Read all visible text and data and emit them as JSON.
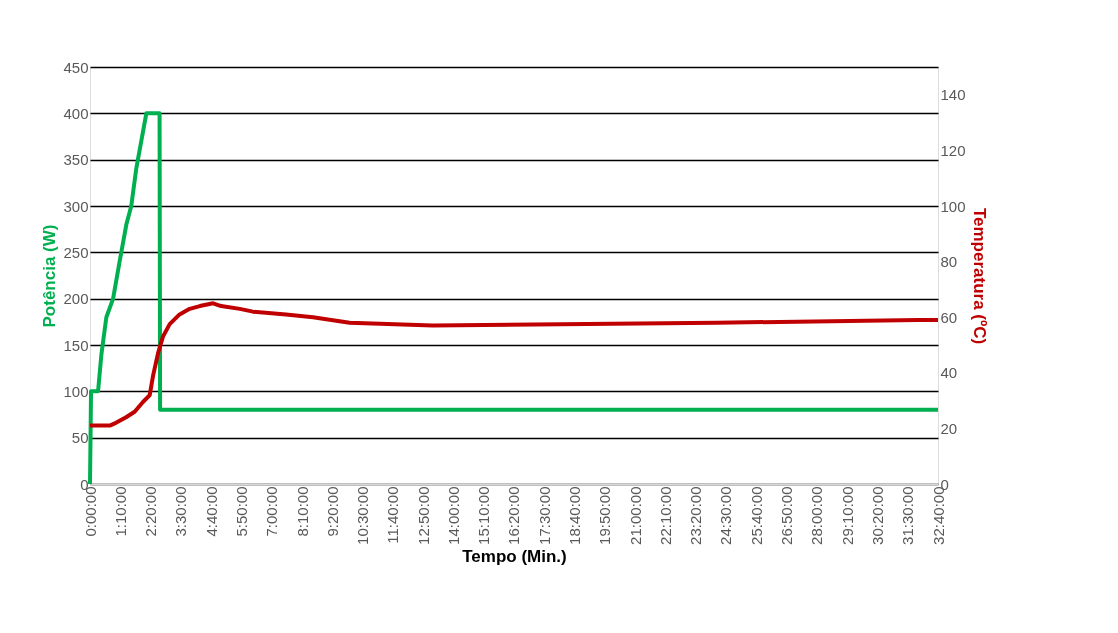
{
  "chart_data": {
    "type": "line",
    "xlabel": "Tempo (Min.)",
    "ylabel": "Potência (W)",
    "y2label": "Temperatura (ºC)",
    "series": [
      {
        "color": "#00b050",
        "axis": "y",
        "x": [
          0,
          0.04,
          0.31,
          0.44,
          0.63,
          0.89,
          1.14,
          1.4,
          1.59,
          1.78,
          2.04,
          2.17,
          2.68,
          2.7,
          32.6667
        ],
        "values": [
          0,
          100,
          100,
          140,
          180,
          200,
          240,
          280,
          300,
          340,
          380,
          400,
          400,
          80,
          80
        ]
      },
      {
        "color": "#c00000",
        "axis": "y2",
        "x": [
          0,
          0.76,
          1.0,
          1.39,
          1.72,
          2.04,
          2.3,
          2.43,
          2.62,
          2.81,
          3.07,
          3.45,
          3.84,
          4.23,
          4.74,
          5.05,
          5.77,
          6.28,
          7.55,
          8.59,
          10.0,
          13.2,
          24.15,
          31.9,
          32.6667
        ],
        "values": [
          21,
          21,
          22,
          24,
          26,
          29.5,
          32,
          39,
          47,
          53,
          57.5,
          61,
          63,
          64,
          65,
          64,
          63,
          62,
          61,
          60,
          58,
          57,
          58,
          59,
          59
        ]
      }
    ],
    "xlim": [
      0,
      32.6667
    ],
    "xticks": [
      {
        "value": 0,
        "label": "0:00:00"
      },
      {
        "value": 1.1667,
        "label": "1:10:00"
      },
      {
        "value": 2.3333,
        "label": "2:20:00"
      },
      {
        "value": 3.5,
        "label": "3:30:00"
      },
      {
        "value": 4.6667,
        "label": "4:40:00"
      },
      {
        "value": 5.8333,
        "label": "5:50:00"
      },
      {
        "value": 7,
        "label": "7:00:00"
      },
      {
        "value": 8.1667,
        "label": "8:10:00"
      },
      {
        "value": 9.3333,
        "label": "9:20:00"
      },
      {
        "value": 10.5,
        "label": "10:30:00"
      },
      {
        "value": 11.6667,
        "label": "11:40:00"
      },
      {
        "value": 12.8333,
        "label": "12:50:00"
      },
      {
        "value": 14,
        "label": "14:00:00"
      },
      {
        "value": 15.1667,
        "label": "15:10:00"
      },
      {
        "value": 16.3333,
        "label": "16:20:00"
      },
      {
        "value": 17.5,
        "label": "17:30:00"
      },
      {
        "value": 18.6667,
        "label": "18:40:00"
      },
      {
        "value": 19.8333,
        "label": "19:50:00"
      },
      {
        "value": 21,
        "label": "21:00:00"
      },
      {
        "value": 22.1667,
        "label": "22:10:00"
      },
      {
        "value": 23.3333,
        "label": "23:20:00"
      },
      {
        "value": 24.5,
        "label": "24:30:00"
      },
      {
        "value": 25.6667,
        "label": "25:40:00"
      },
      {
        "value": 26.8333,
        "label": "26:50:00"
      },
      {
        "value": 28,
        "label": "28:00:00"
      },
      {
        "value": 29.1667,
        "label": "29:10:00"
      },
      {
        "value": 30.3333,
        "label": "30:20:00"
      },
      {
        "value": 31.5,
        "label": "31:30:00"
      },
      {
        "value": 32.6667,
        "label": "32:40:00"
      }
    ],
    "ylim": [
      0,
      450
    ],
    "yticks": [
      0,
      50,
      100,
      150,
      200,
      250,
      300,
      350,
      400,
      450
    ],
    "y2lim": [
      0,
      150
    ],
    "y2ticks": [
      0,
      20,
      40,
      60,
      80,
      100,
      120,
      140
    ],
    "grid": "y",
    "legend": false,
    "marker": "none",
    "line_style": "solid"
  }
}
